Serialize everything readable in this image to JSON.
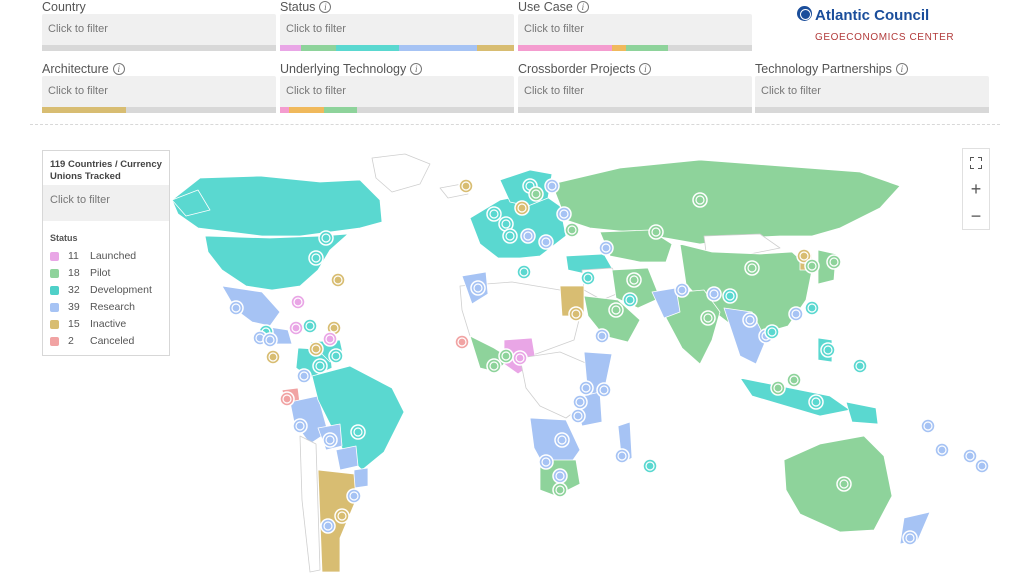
{
  "filters": [
    {
      "label": "Country",
      "placeholder": "Click to filter",
      "info": false,
      "bar": []
    },
    {
      "label": "Status",
      "placeholder": "Click to filter",
      "info": true,
      "bar": [
        {
          "color": "#e9a6e6",
          "share": 0.09
        },
        {
          "color": "#8ed39b",
          "share": 0.15
        },
        {
          "color": "#5ad8d0",
          "share": 0.27
        },
        {
          "color": "#a6c3f4",
          "share": 0.33
        },
        {
          "color": "#d8bd72",
          "share": 0.16
        }
      ]
    },
    {
      "label": "Use Case",
      "placeholder": "Click to filter",
      "info": true,
      "bar": [
        {
          "color": "#f49ccf",
          "share": 0.4
        },
        {
          "color": "#f0b95c",
          "share": 0.06
        },
        {
          "color": "#8ed39b",
          "share": 0.18
        }
      ]
    },
    {
      "label": "Architecture",
      "placeholder": "Click to filter",
      "info": true,
      "bar": [
        {
          "color": "#d8bd72",
          "share": 0.36
        }
      ]
    },
    {
      "label": "Underlying Technology",
      "placeholder": "Click to filter",
      "info": true,
      "bar": [
        {
          "color": "#f49ccf",
          "share": 0.04
        },
        {
          "color": "#f0b95c",
          "share": 0.15
        },
        {
          "color": "#8ed39b",
          "share": 0.14
        }
      ]
    },
    {
      "label": "Crossborder Projects",
      "placeholder": "Click to filter",
      "info": true,
      "bar": []
    },
    {
      "label": "Technology Partnerships",
      "placeholder": "Click to filter",
      "info": true,
      "bar": []
    }
  ],
  "logo": {
    "name": "Atlantic Council",
    "subtitle": "GEOECONOMICS CENTER"
  },
  "legend": {
    "title": "119 Countries / Currency Unions Tracked",
    "placeholder": "Click to filter",
    "status_heading": "Status",
    "items": [
      {
        "count": "11",
        "label": "Launched",
        "color": "#e9a6e6"
      },
      {
        "count": "18",
        "label": "Pilot",
        "color": "#8ed39b"
      },
      {
        "count": "32",
        "label": "Development",
        "color": "#4fd0c8"
      },
      {
        "count": "39",
        "label": "Research",
        "color": "#a6c3f4"
      },
      {
        "count": "15",
        "label": "Inactive",
        "color": "#d8bd72"
      },
      {
        "count": "2",
        "label": "Canceled",
        "color": "#f1a3a3"
      }
    ]
  },
  "colors": {
    "launched": "#e9a6e6",
    "pilot": "#8ed39b",
    "development": "#5ad8d0",
    "research": "#a6c3f4",
    "inactive": "#d8bd72",
    "canceled": "#f1a3a3",
    "untracked": "#ffffff"
  },
  "map_controls": [
    "fullscreen-icon",
    "zoom-in-icon",
    "zoom-out-icon"
  ]
}
